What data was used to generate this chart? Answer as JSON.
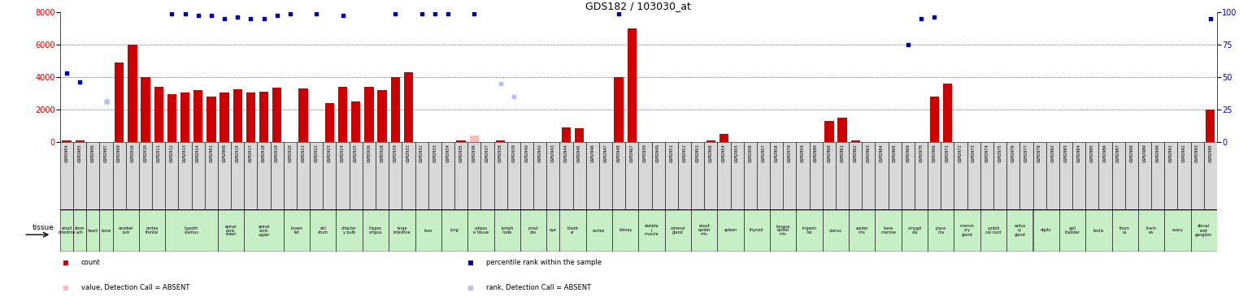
{
  "title": "GDS182 / 103030_at",
  "samples": [
    "GSM2904",
    "GSM2905",
    "GSM2906",
    "GSM2907",
    "GSM2909",
    "GSM2916",
    "GSM2910",
    "GSM2911",
    "GSM2912",
    "GSM2913",
    "GSM2914",
    "GSM2981",
    "GSM2908",
    "GSM2915",
    "GSM2917",
    "GSM2918",
    "GSM2919",
    "GSM2920",
    "GSM2921",
    "GSM2922",
    "GSM2923",
    "GSM2924",
    "GSM2925",
    "GSM2926",
    "GSM2928",
    "GSM2929",
    "GSM2931",
    "GSM2932",
    "GSM2933",
    "GSM2934",
    "GSM2935",
    "GSM2936",
    "GSM2937",
    "GSM2938",
    "GSM2939",
    "GSM2940",
    "GSM2942",
    "GSM2943",
    "GSM2944",
    "GSM2945",
    "GSM2946",
    "GSM2947",
    "GSM2948",
    "GSM2967",
    "GSM2930",
    "GSM2949",
    "GSM2951",
    "GSM2952",
    "GSM2953",
    "GSM2968",
    "GSM2954",
    "GSM2955",
    "GSM2956",
    "GSM2957",
    "GSM2958",
    "GSM2979",
    "GSM2959",
    "GSM2980",
    "GSM2960",
    "GSM2961",
    "GSM2962",
    "GSM2963",
    "GSM2964",
    "GSM2965",
    "GSM2969",
    "GSM2970",
    "GSM2966",
    "GSM2971",
    "GSM2972",
    "GSM2973",
    "GSM2974",
    "GSM2975",
    "GSM2976",
    "GSM2977",
    "GSM2978",
    "GSM2982",
    "GSM2983",
    "GSM2984",
    "GSM2985",
    "GSM2986",
    "GSM2987",
    "GSM2988",
    "GSM2989",
    "GSM2990",
    "GSM2991",
    "GSM2992",
    "GSM2993",
    "GSM2995"
  ],
  "tissues": [
    "small intestine",
    "stomach",
    "heart",
    "bone",
    "cerebellum",
    "cerebellum",
    "cortex frontal",
    "cortex frontal",
    "hypothalamus",
    "hypothalamus",
    "hypothalamus",
    "hypothalamus",
    "spinal cord, lower",
    "spinal cord, lower",
    "spinal cord, upper",
    "spinal cord, upper",
    "spinal cord, upper",
    "brown fat",
    "brown fat",
    "striatum",
    "striatum",
    "olfactory bulb",
    "olfactory bulb",
    "hippocampus",
    "hippocampus",
    "large intestine",
    "large intestine",
    "liver",
    "liver",
    "lung",
    "lung",
    "adipose tissue",
    "adipose tissue",
    "lymph node",
    "lymph node",
    "prostate",
    "prostate",
    "eye",
    "bladder",
    "bladder",
    "cortex",
    "cortex",
    "kidney",
    "kidney",
    "skeletal muscle",
    "skeletal muscle",
    "adrenal gland",
    "adrenal gland",
    "snout epidermis",
    "snout epidermis",
    "spleen",
    "spleen",
    "thyroid",
    "thyroid",
    "tongue epidermis",
    "tongue epidermis",
    "trigeminal",
    "trigeminal",
    "uterus",
    "uterus",
    "epidermis",
    "epidermis",
    "bone marrow",
    "bone marrow",
    "amygdala",
    "amygdala",
    "placenta",
    "placenta",
    "mammary gland",
    "mammary gland",
    "umbilical cord",
    "umbilical cord",
    "salivary gland",
    "salivary gland",
    "digits",
    "digits",
    "gall bladder",
    "gall bladder",
    "testis",
    "testis",
    "thymus",
    "thymus",
    "trachea",
    "trachea",
    "ovary",
    "ovary",
    "dorsal root ganglion",
    "dorsal root ganglion"
  ],
  "tissue_display": [
    "small\nintestine",
    "stom\nach",
    "heart",
    "bone",
    "cerebel\nlum",
    "cerebel\nlum",
    "cortex\nfrontal",
    "cortex\nfrontal",
    "hypoth\nalamus",
    "hypoth\nalamus",
    "hypoth\nalamus",
    "hypoth\nalamus",
    "spinal\ncord,\nlower",
    "spinal\ncord,\nlower",
    "spinal\ncord,\nupper",
    "spinal\ncord,\nupper",
    "spinal\ncord,\nupper",
    "brown\nfat",
    "brown\nfat",
    "stri\natum",
    "stri\natum",
    "olfactor\ny bulb",
    "olfactor\ny bulb",
    "hippoc\nampus",
    "hippoc\nampus",
    "large\nintestine",
    "large\nintestine",
    "liver",
    "liver",
    "lung",
    "lung",
    "adipos\ne tissue",
    "adipos\ne tissue",
    "lymph\nnode",
    "lymph\nnode",
    "prost\nate",
    "prost\nate",
    "eye",
    "bladd\ner",
    "bladd\ner",
    "cortex",
    "cortex",
    "kidney",
    "kidney",
    "skeleta\nl\nmuscle",
    "skeleta\nl\nmuscle",
    "adrenal\ngland",
    "adrenal\ngland",
    "snout\nepider\nmis",
    "snout\nepider\nmis",
    "spleen",
    "spleen",
    "thyroid",
    "thyroid",
    "tongue\nepider\nmis",
    "tongue\nepider\nmis",
    "trigemi\nnal",
    "trigemi\nnal",
    "uterus",
    "uterus",
    "epider\nmis",
    "epider\nmis",
    "bone\nmarrow",
    "bone\nmarrow",
    "amygd\nala",
    "amygd\nala",
    "place\nnta",
    "place\nnta",
    "mamm\nary\ngland",
    "mamm\nary\ngland",
    "umbili\ncal cord",
    "umbili\ncal cord",
    "saliva\nry\ngland",
    "saliva\nry\ngland",
    "digits",
    "digits",
    "gall\nbladder",
    "gall\nbladder",
    "testis",
    "testis",
    "thym\nus",
    "thym\nus",
    "trach\nea",
    "trach\nea",
    "ovary",
    "ovary",
    "dorsal\nroot\nganglion",
    "dorsal\nroot\nganglion"
  ],
  "counts": [
    100,
    120,
    0,
    0,
    4900,
    6000,
    4000,
    3400,
    2950,
    3050,
    3200,
    2800,
    3050,
    3250,
    3060,
    3080,
    3350,
    0,
    3300,
    0,
    2400,
    3400,
    2500,
    3400,
    3200,
    4000,
    4300,
    0,
    0,
    0,
    80,
    0,
    0,
    100,
    0,
    0,
    0,
    0,
    900,
    850,
    0,
    0,
    4000,
    7000,
    0,
    0,
    0,
    0,
    0,
    100,
    500,
    0,
    0,
    0,
    0,
    0,
    0,
    0,
    1300,
    1500,
    100,
    0,
    0,
    0,
    0,
    0,
    2800,
    3600,
    0,
    0,
    0,
    0,
    0,
    0,
    0,
    0,
    0,
    0,
    0,
    0,
    0,
    0,
    0,
    0,
    0,
    0,
    0,
    2000
  ],
  "ranks": [
    4250,
    3700,
    0,
    2500,
    0,
    0,
    0,
    0,
    7900,
    7900,
    7800,
    7800,
    7600,
    7700,
    7600,
    7600,
    7800,
    7900,
    0,
    7900,
    0,
    7800,
    0,
    0,
    0,
    7900,
    0,
    7900,
    7900,
    7900,
    0,
    7900,
    0,
    0,
    0,
    0,
    0,
    0,
    0,
    0,
    0,
    0,
    7900,
    0,
    0,
    0,
    0,
    0,
    0,
    0,
    0,
    0,
    0,
    0,
    0,
    0,
    0,
    0,
    0,
    0,
    0,
    0,
    0,
    0,
    6000,
    7600,
    7700,
    0,
    0,
    0,
    0,
    0,
    0,
    0,
    0,
    0,
    0,
    0,
    0,
    0,
    0,
    0,
    0,
    0,
    0,
    0,
    0,
    7600
  ],
  "absent_counts": [
    0,
    0,
    0,
    0,
    0,
    0,
    0,
    0,
    0,
    0,
    0,
    0,
    0,
    0,
    0,
    0,
    0,
    0,
    0,
    0,
    0,
    0,
    0,
    0,
    0,
    0,
    0,
    0,
    0,
    0,
    0,
    400,
    0,
    0,
    0,
    0,
    0,
    0,
    0,
    0,
    0,
    0,
    0,
    0,
    0,
    0,
    0,
    0,
    0,
    0,
    0,
    0,
    0,
    0,
    0,
    0,
    0,
    0,
    0,
    0,
    0,
    0,
    0,
    0,
    0,
    0,
    0,
    0,
    0,
    0,
    0,
    0,
    0,
    0,
    0,
    0,
    0,
    0,
    0,
    0,
    0,
    0,
    0,
    0,
    0,
    0,
    0,
    0
  ],
  "absent_ranks": [
    0,
    0,
    0,
    2500,
    0,
    0,
    0,
    0,
    0,
    0,
    0,
    0,
    0,
    0,
    0,
    0,
    0,
    0,
    0,
    0,
    0,
    0,
    0,
    0,
    0,
    0,
    0,
    0,
    0,
    0,
    0,
    0,
    0,
    3600,
    2800,
    0,
    0,
    0,
    0,
    0,
    0,
    0,
    0,
    0,
    0,
    0,
    0,
    0,
    0,
    0,
    0,
    0,
    0,
    0,
    0,
    0,
    0,
    0,
    0,
    0,
    0,
    0,
    0,
    0,
    0,
    0,
    0,
    0,
    0,
    0,
    0,
    0,
    0,
    0,
    0,
    0,
    0,
    0,
    0,
    0,
    0,
    0,
    0,
    0,
    0,
    0,
    0,
    0
  ],
  "ylim_left": [
    0,
    8000
  ],
  "ylim_right": [
    0,
    100
  ],
  "yticks_left": [
    0,
    2000,
    4000,
    6000,
    8000
  ],
  "yticks_right": [
    0,
    25,
    50,
    75,
    100
  ],
  "bar_color": "#cc0000",
  "rank_color": "#0000bb",
  "absent_bar_color": "#ffbbbb",
  "absent_rank_color": "#bbbbff",
  "bg_color": "#ffffff",
  "tissue_bg": "#c8eec8",
  "sample_bg": "#d8d8d8",
  "legend_items": [
    [
      "#cc0000",
      "count"
    ],
    [
      "#0000bb",
      "percentile rank within the sample"
    ],
    [
      "#ffbbbb",
      "value, Detection Call = ABSENT"
    ],
    [
      "#bbbbff",
      "rank, Detection Call = ABSENT"
    ]
  ]
}
